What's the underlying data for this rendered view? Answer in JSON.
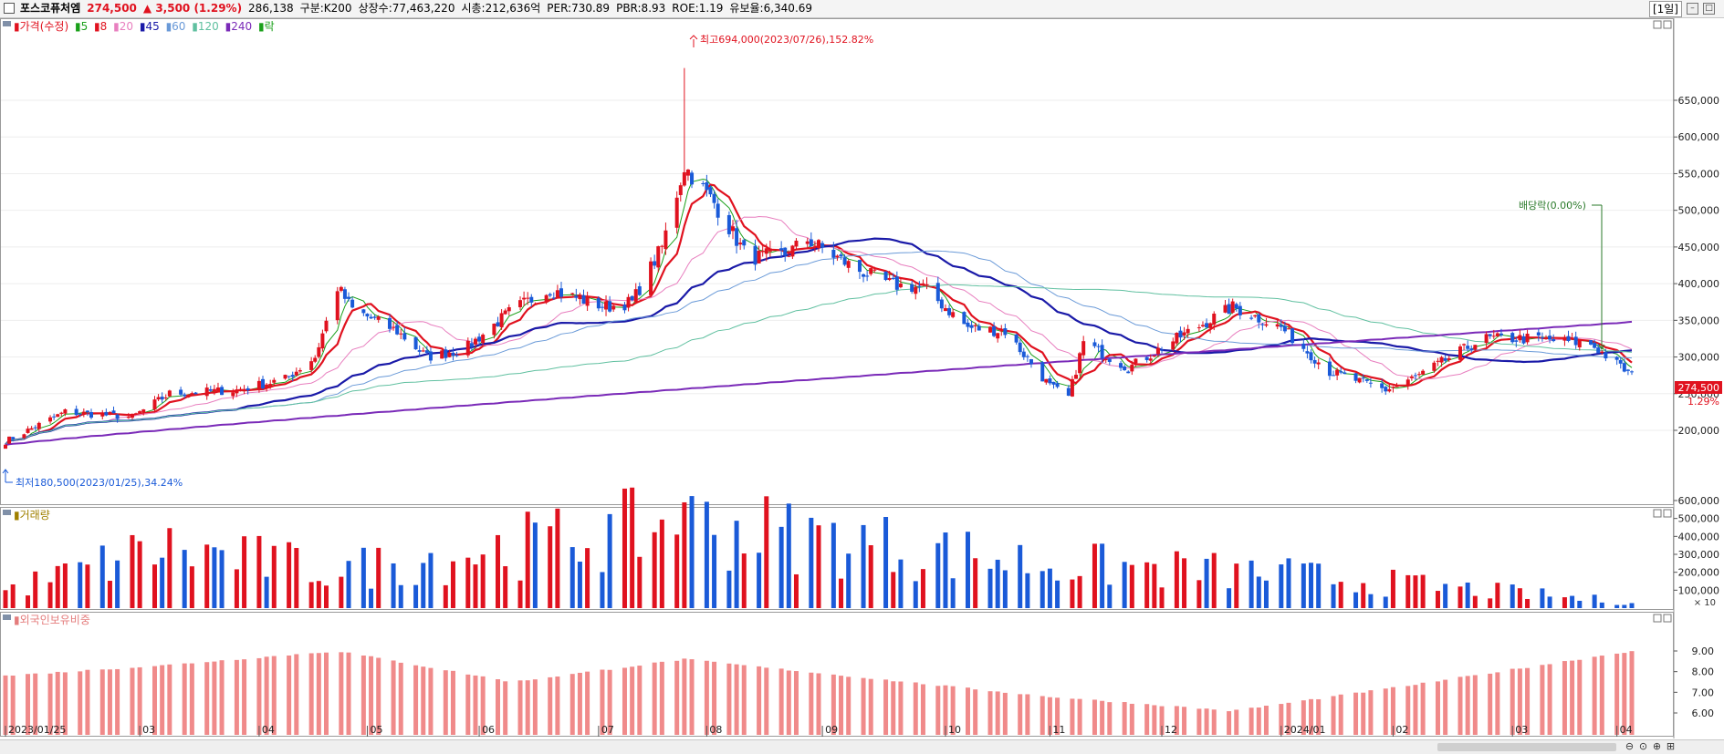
{
  "header": {
    "name": "포스코퓨처엠",
    "price": "274,500",
    "change": "▲ 3,500 (1.29%)",
    "volume": "286,138",
    "segment": "구분:K200",
    "listed": "상장수:77,463,220",
    "mktcap": "시총:212,636억",
    "per": "PER:730.89",
    "pbr": "PBR:8.93",
    "roe": "ROE:1.19",
    "float": "유보율:6,340.69",
    "period_button": "[1일]"
  },
  "legend": {
    "price": "가격(수정)",
    "ma": [
      "5",
      "8",
      "20",
      "45",
      "60",
      "120",
      "240"
    ],
    "ex": "락",
    "volume": "거래량",
    "foreign": "외국인보유비중"
  },
  "annotations": {
    "high": "최고694,000(2023/07/26),152.82%",
    "low": "최저180,500(2023/01/25),34.24%",
    "dividend": "배당락(0.00%)",
    "badge_price": "274,500",
    "badge_pct": "1.29%",
    "vol_unit": "× 10"
  },
  "chart_data": {
    "type": "candlestick",
    "price_axis_ticks": [
      "650,000",
      "600,000",
      "550,000",
      "500,000",
      "450,000",
      "400,000",
      "350,000",
      "300,000",
      "250,000",
      "200,000"
    ],
    "volume_axis_ticks": [
      "600,000",
      "500,000",
      "400,000",
      "300,000",
      "200,000",
      "100,000"
    ],
    "foreign_axis_ticks": [
      "9.00",
      "8.00",
      "7.00",
      "6.00"
    ],
    "x_ticks": [
      "2023/01/25",
      "03",
      "04",
      "05",
      "06",
      "07",
      "08",
      "09",
      "10",
      "11",
      "12",
      "2024/01",
      "02",
      "03",
      "04"
    ],
    "price_keypoints": [
      [
        "2023/01/25",
        185000
      ],
      [
        "2023/02/10",
        225000
      ],
      [
        "2023/02/28",
        218000
      ],
      [
        "2023/03/10",
        250000
      ],
      [
        "2023/03/28",
        255000
      ],
      [
        "2023/04/10",
        270000
      ],
      [
        "2023/04/18",
        300000
      ],
      [
        "2023/04/24",
        395000
      ],
      [
        "2023/04/28",
        365000
      ],
      [
        "2023/05/10",
        335000
      ],
      [
        "2023/05/18",
        300000
      ],
      [
        "2023/05/28",
        310000
      ],
      [
        "2023/06/10",
        365000
      ],
      [
        "2023/06/20",
        392000
      ],
      [
        "2023/07/05",
        368000
      ],
      [
        "2023/07/12",
        375000
      ],
      [
        "2023/07/20",
        450000
      ],
      [
        "2023/07/26",
        560000
      ],
      [
        "2023/08/03",
        510000
      ],
      [
        "2023/08/12",
        435000
      ],
      [
        "2023/08/22",
        440000
      ],
      [
        "2023/08/28",
        460000
      ],
      [
        "2023/09/10",
        420000
      ],
      [
        "2023/09/20",
        398000
      ],
      [
        "2023/09/28",
        395000
      ],
      [
        "2023/10/10",
        340000
      ],
      [
        "2023/10/20",
        335000
      ],
      [
        "2023/11/01",
        260000
      ],
      [
        "2023/11/06",
        245000
      ],
      [
        "2023/11/10",
        320000
      ],
      [
        "2023/11/22",
        285000
      ],
      [
        "2023/12/05",
        325000
      ],
      [
        "2023/12/20",
        368000
      ],
      [
        "2024/01/02",
        340000
      ],
      [
        "2024/01/15",
        280000
      ],
      [
        "2024/01/30",
        255000
      ],
      [
        "2024/02/08",
        275000
      ],
      [
        "2024/02/25",
        325000
      ],
      [
        "2024/03/10",
        325000
      ],
      [
        "2024/03/25",
        318000
      ],
      [
        "2024/04/05",
        274500
      ]
    ],
    "volume_keypoints": [
      [
        "2023/01/25",
        120000
      ],
      [
        "2023/03/08",
        420000
      ],
      [
        "2023/04/24",
        260000
      ],
      [
        "2023/07/26",
        590000
      ],
      [
        "2023/10/31",
        310000
      ],
      [
        "2024/01/05",
        230000
      ],
      [
        "2024/04/05",
        40000
      ]
    ],
    "foreign_keypoints": [
      [
        "2023/01/25",
        7.8
      ],
      [
        "2023/03/08",
        8.3
      ],
      [
        "2023/04/24",
        9.0
      ],
      [
        "2023/06/10",
        7.5
      ],
      [
        "2023/07/26",
        8.6
      ],
      [
        "2023/10/31",
        6.8
      ],
      [
        "2023/12/20",
        6.1
      ],
      [
        "2024/02/08",
        7.4
      ],
      [
        "2024/04/05",
        9.0
      ]
    ],
    "high_value": 694000,
    "low_value": 180500
  }
}
